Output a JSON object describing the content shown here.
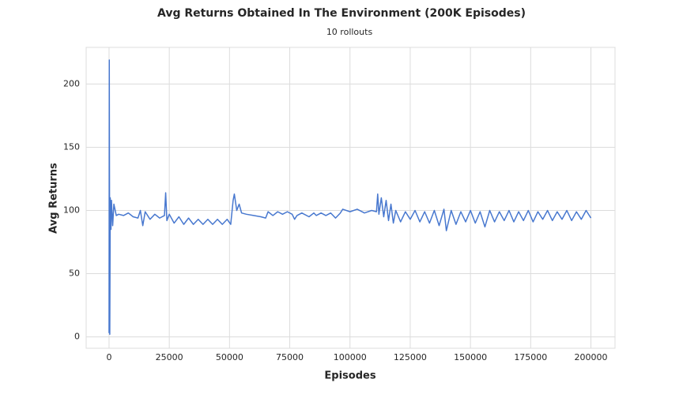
{
  "chart_data": {
    "type": "line",
    "title": "Avg Returns Obtained In The Environment (200K Episodes)",
    "subtitle": "10 rollouts",
    "x_label": "Episodes",
    "y_label": "Avg Returns",
    "color": "#4878cf",
    "grid": true,
    "xlim": [
      -9500,
      210000
    ],
    "ylim": [
      -9,
      229
    ],
    "xticks": [
      0,
      25000,
      50000,
      75000,
      100000,
      125000,
      150000,
      175000,
      200000
    ],
    "yticks": [
      0,
      50,
      100,
      150,
      200
    ],
    "x": [
      0,
      100,
      300,
      500,
      800,
      1000,
      1500,
      2000,
      3000,
      4000,
      6000,
      8000,
      10000,
      12000,
      13000,
      14000,
      15000,
      17000,
      19000,
      21000,
      23000,
      23500,
      24000,
      25000,
      27000,
      29000,
      31000,
      33000,
      35000,
      37000,
      39000,
      41000,
      43000,
      45000,
      47000,
      49000,
      50500,
      51500,
      52000,
      53000,
      54000,
      55000,
      57000,
      60000,
      63000,
      65000,
      66000,
      68000,
      70000,
      72000,
      74000,
      76000,
      77000,
      78000,
      80000,
      83000,
      85000,
      86000,
      88000,
      90000,
      92000,
      94000,
      96000,
      97000,
      100000,
      103000,
      106000,
      109000,
      111000,
      111500,
      112000,
      113000,
      114000,
      115000,
      116000,
      117000,
      118000,
      119000,
      121000,
      123000,
      125000,
      127000,
      129000,
      131000,
      133000,
      135000,
      137000,
      139000,
      140000,
      142000,
      144000,
      146000,
      148000,
      150000,
      152000,
      154000,
      156000,
      158000,
      160000,
      162000,
      164000,
      166000,
      168000,
      170000,
      172000,
      174000,
      176000,
      178000,
      180000,
      182000,
      184000,
      186000,
      188000,
      190000,
      192000,
      194000,
      196000,
      198000,
      200000
    ],
    "values": [
      3,
      219,
      2,
      110,
      85,
      108,
      88,
      105,
      96,
      97,
      96,
      98,
      95,
      94,
      100,
      88,
      99,
      93,
      97,
      94,
      96,
      114,
      92,
      97,
      90,
      95,
      89,
      94,
      89,
      93,
      89,
      93,
      89,
      93,
      89,
      93,
      89,
      108,
      113,
      100,
      105,
      98,
      97,
      96,
      95,
      94,
      99,
      96,
      99,
      97,
      99,
      97,
      93,
      96,
      98,
      95,
      98,
      96,
      98,
      96,
      98,
      94,
      98,
      101,
      99,
      101,
      98,
      100,
      99,
      113,
      97,
      110,
      95,
      108,
      92,
      105,
      90,
      100,
      91,
      99,
      93,
      100,
      91,
      99,
      90,
      100,
      88,
      101,
      84,
      100,
      89,
      99,
      91,
      100,
      90,
      99,
      87,
      100,
      91,
      99,
      92,
      100,
      91,
      99,
      92,
      100,
      91,
      99,
      93,
      100,
      92,
      99,
      93,
      100,
      92,
      99,
      93,
      100,
      94
    ]
  }
}
